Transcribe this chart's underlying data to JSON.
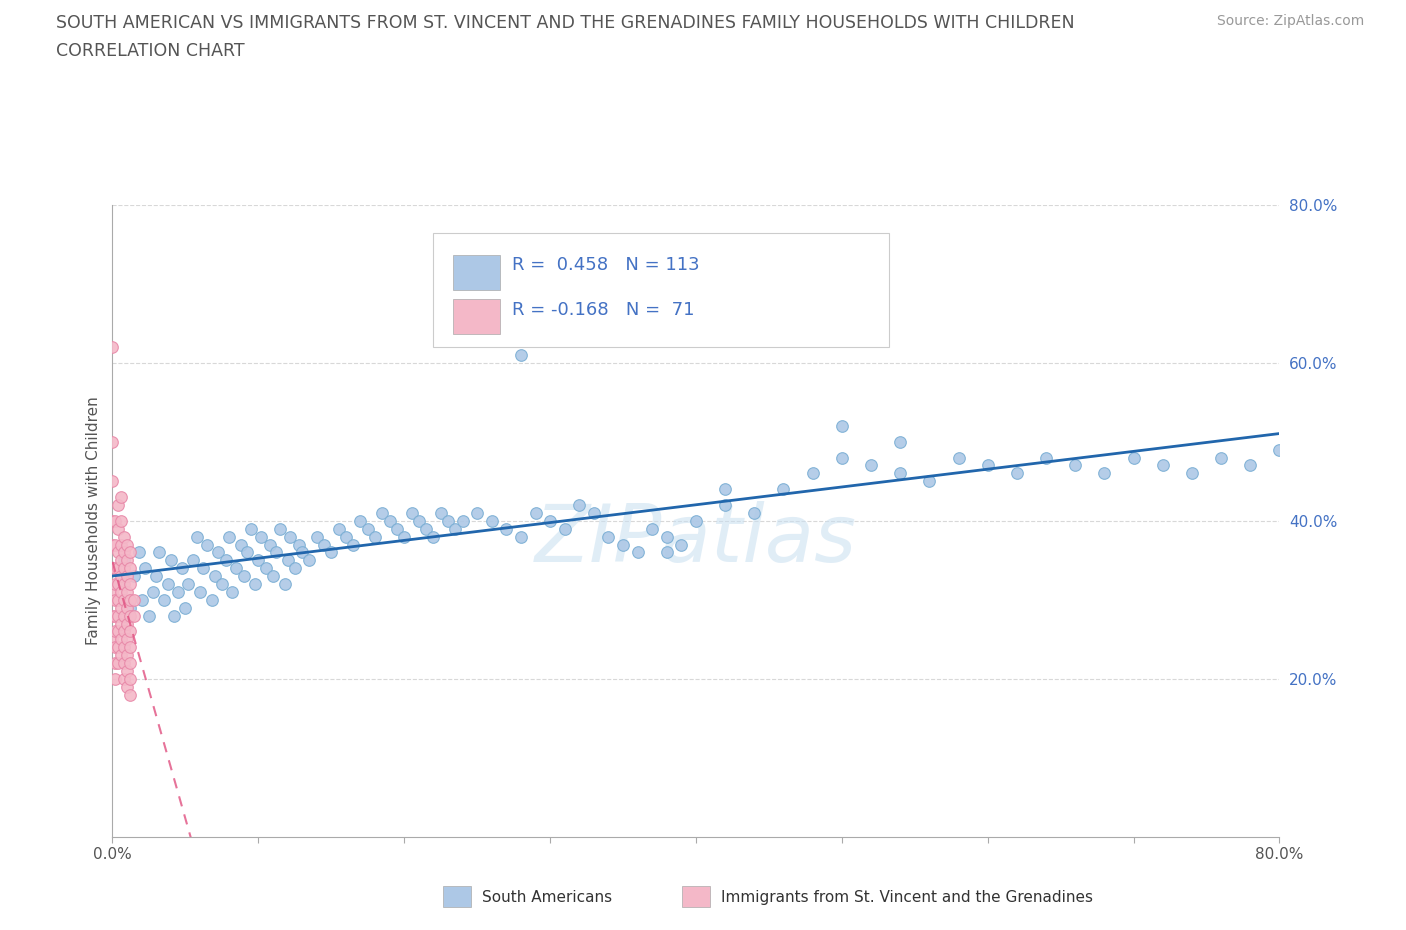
{
  "title_line1": "SOUTH AMERICAN VS IMMIGRANTS FROM ST. VINCENT AND THE GRENADINES FAMILY HOUSEHOLDS WITH CHILDREN",
  "title_line2": "CORRELATION CHART",
  "source": "Source: ZipAtlas.com",
  "ylabel": "Family Households with Children",
  "xlim": [
    0.0,
    0.8
  ],
  "ylim": [
    0.0,
    0.8
  ],
  "xtick_vals": [
    0.0,
    0.1,
    0.2,
    0.3,
    0.4,
    0.5,
    0.6,
    0.7,
    0.8
  ],
  "xtick_bottom_labels": {
    "0": "0.0%",
    "8": "80.0%"
  },
  "ytick_vals": [
    0.2,
    0.4,
    0.6,
    0.8
  ],
  "ytick_labels": [
    "20.0%",
    "40.0%",
    "60.0%",
    "80.0%"
  ],
  "blue_R": 0.458,
  "blue_N": 113,
  "pink_R": -0.168,
  "pink_N": 71,
  "blue_color": "#adc8e6",
  "blue_edge_color": "#7aaed4",
  "blue_line_color": "#2166ac",
  "pink_color": "#f4b8c8",
  "pink_edge_color": "#e888a8",
  "pink_line_color": "#e05080",
  "tick_label_color": "#4472c4",
  "watermark": "ZIPatlas",
  "legend_label_blue": "South Americans",
  "legend_label_pink": "Immigrants from St. Vincent and the Grenadines",
  "blue_scatter_x": [
    0.005,
    0.008,
    0.012,
    0.015,
    0.018,
    0.02,
    0.022,
    0.025,
    0.028,
    0.03,
    0.032,
    0.035,
    0.038,
    0.04,
    0.042,
    0.045,
    0.048,
    0.05,
    0.052,
    0.055,
    0.058,
    0.06,
    0.062,
    0.065,
    0.068,
    0.07,
    0.072,
    0.075,
    0.078,
    0.08,
    0.082,
    0.085,
    0.088,
    0.09,
    0.092,
    0.095,
    0.098,
    0.1,
    0.102,
    0.105,
    0.108,
    0.11,
    0.112,
    0.115,
    0.118,
    0.12,
    0.122,
    0.125,
    0.128,
    0.13,
    0.135,
    0.14,
    0.145,
    0.15,
    0.155,
    0.16,
    0.165,
    0.17,
    0.175,
    0.18,
    0.185,
    0.19,
    0.195,
    0.2,
    0.205,
    0.21,
    0.215,
    0.22,
    0.225,
    0.23,
    0.235,
    0.24,
    0.25,
    0.26,
    0.27,
    0.28,
    0.29,
    0.3,
    0.31,
    0.32,
    0.33,
    0.34,
    0.35,
    0.36,
    0.37,
    0.38,
    0.39,
    0.4,
    0.42,
    0.44,
    0.46,
    0.48,
    0.5,
    0.52,
    0.54,
    0.56,
    0.58,
    0.6,
    0.62,
    0.64,
    0.66,
    0.68,
    0.7,
    0.72,
    0.74,
    0.76,
    0.78,
    0.8,
    0.5,
    0.54,
    0.42,
    0.38,
    0.28
  ],
  "blue_scatter_y": [
    0.32,
    0.35,
    0.29,
    0.33,
    0.36,
    0.3,
    0.34,
    0.28,
    0.31,
    0.33,
    0.36,
    0.3,
    0.32,
    0.35,
    0.28,
    0.31,
    0.34,
    0.29,
    0.32,
    0.35,
    0.38,
    0.31,
    0.34,
    0.37,
    0.3,
    0.33,
    0.36,
    0.32,
    0.35,
    0.38,
    0.31,
    0.34,
    0.37,
    0.33,
    0.36,
    0.39,
    0.32,
    0.35,
    0.38,
    0.34,
    0.37,
    0.33,
    0.36,
    0.39,
    0.32,
    0.35,
    0.38,
    0.34,
    0.37,
    0.36,
    0.35,
    0.38,
    0.37,
    0.36,
    0.39,
    0.38,
    0.37,
    0.4,
    0.39,
    0.38,
    0.41,
    0.4,
    0.39,
    0.38,
    0.41,
    0.4,
    0.39,
    0.38,
    0.41,
    0.4,
    0.39,
    0.4,
    0.41,
    0.4,
    0.39,
    0.38,
    0.41,
    0.4,
    0.39,
    0.42,
    0.41,
    0.38,
    0.37,
    0.36,
    0.39,
    0.38,
    0.37,
    0.4,
    0.42,
    0.41,
    0.44,
    0.46,
    0.48,
    0.47,
    0.46,
    0.45,
    0.48,
    0.47,
    0.46,
    0.48,
    0.47,
    0.46,
    0.48,
    0.47,
    0.46,
    0.48,
    0.47,
    0.49,
    0.52,
    0.5,
    0.44,
    0.36,
    0.61
  ],
  "pink_scatter_x": [
    0.0,
    0.0,
    0.0,
    0.0,
    0.0,
    0.0,
    0.0,
    0.0,
    0.0,
    0.002,
    0.002,
    0.002,
    0.002,
    0.002,
    0.002,
    0.002,
    0.002,
    0.002,
    0.002,
    0.004,
    0.004,
    0.004,
    0.004,
    0.004,
    0.004,
    0.004,
    0.004,
    0.004,
    0.004,
    0.006,
    0.006,
    0.006,
    0.006,
    0.006,
    0.006,
    0.006,
    0.006,
    0.006,
    0.006,
    0.008,
    0.008,
    0.008,
    0.008,
    0.008,
    0.008,
    0.008,
    0.008,
    0.008,
    0.008,
    0.01,
    0.01,
    0.01,
    0.01,
    0.01,
    0.01,
    0.01,
    0.01,
    0.01,
    0.01,
    0.012,
    0.012,
    0.012,
    0.012,
    0.012,
    0.012,
    0.012,
    0.012,
    0.012,
    0.012,
    0.015,
    0.015
  ],
  "pink_scatter_y": [
    0.62,
    0.5,
    0.45,
    0.4,
    0.37,
    0.34,
    0.31,
    0.28,
    0.25,
    0.4,
    0.37,
    0.34,
    0.32,
    0.3,
    0.28,
    0.26,
    0.24,
    0.22,
    0.2,
    0.42,
    0.39,
    0.36,
    0.34,
    0.32,
    0.3,
    0.28,
    0.26,
    0.24,
    0.22,
    0.43,
    0.4,
    0.37,
    0.35,
    0.33,
    0.31,
    0.29,
    0.27,
    0.25,
    0.23,
    0.38,
    0.36,
    0.34,
    0.32,
    0.3,
    0.28,
    0.26,
    0.24,
    0.22,
    0.2,
    0.37,
    0.35,
    0.33,
    0.31,
    0.29,
    0.27,
    0.25,
    0.23,
    0.21,
    0.19,
    0.36,
    0.34,
    0.32,
    0.3,
    0.28,
    0.26,
    0.24,
    0.22,
    0.2,
    0.18,
    0.3,
    0.28
  ],
  "bg_color": "#ffffff",
  "grid_color": "#d8d8d8",
  "title_color": "#555555",
  "axis_label_color": "#555555"
}
